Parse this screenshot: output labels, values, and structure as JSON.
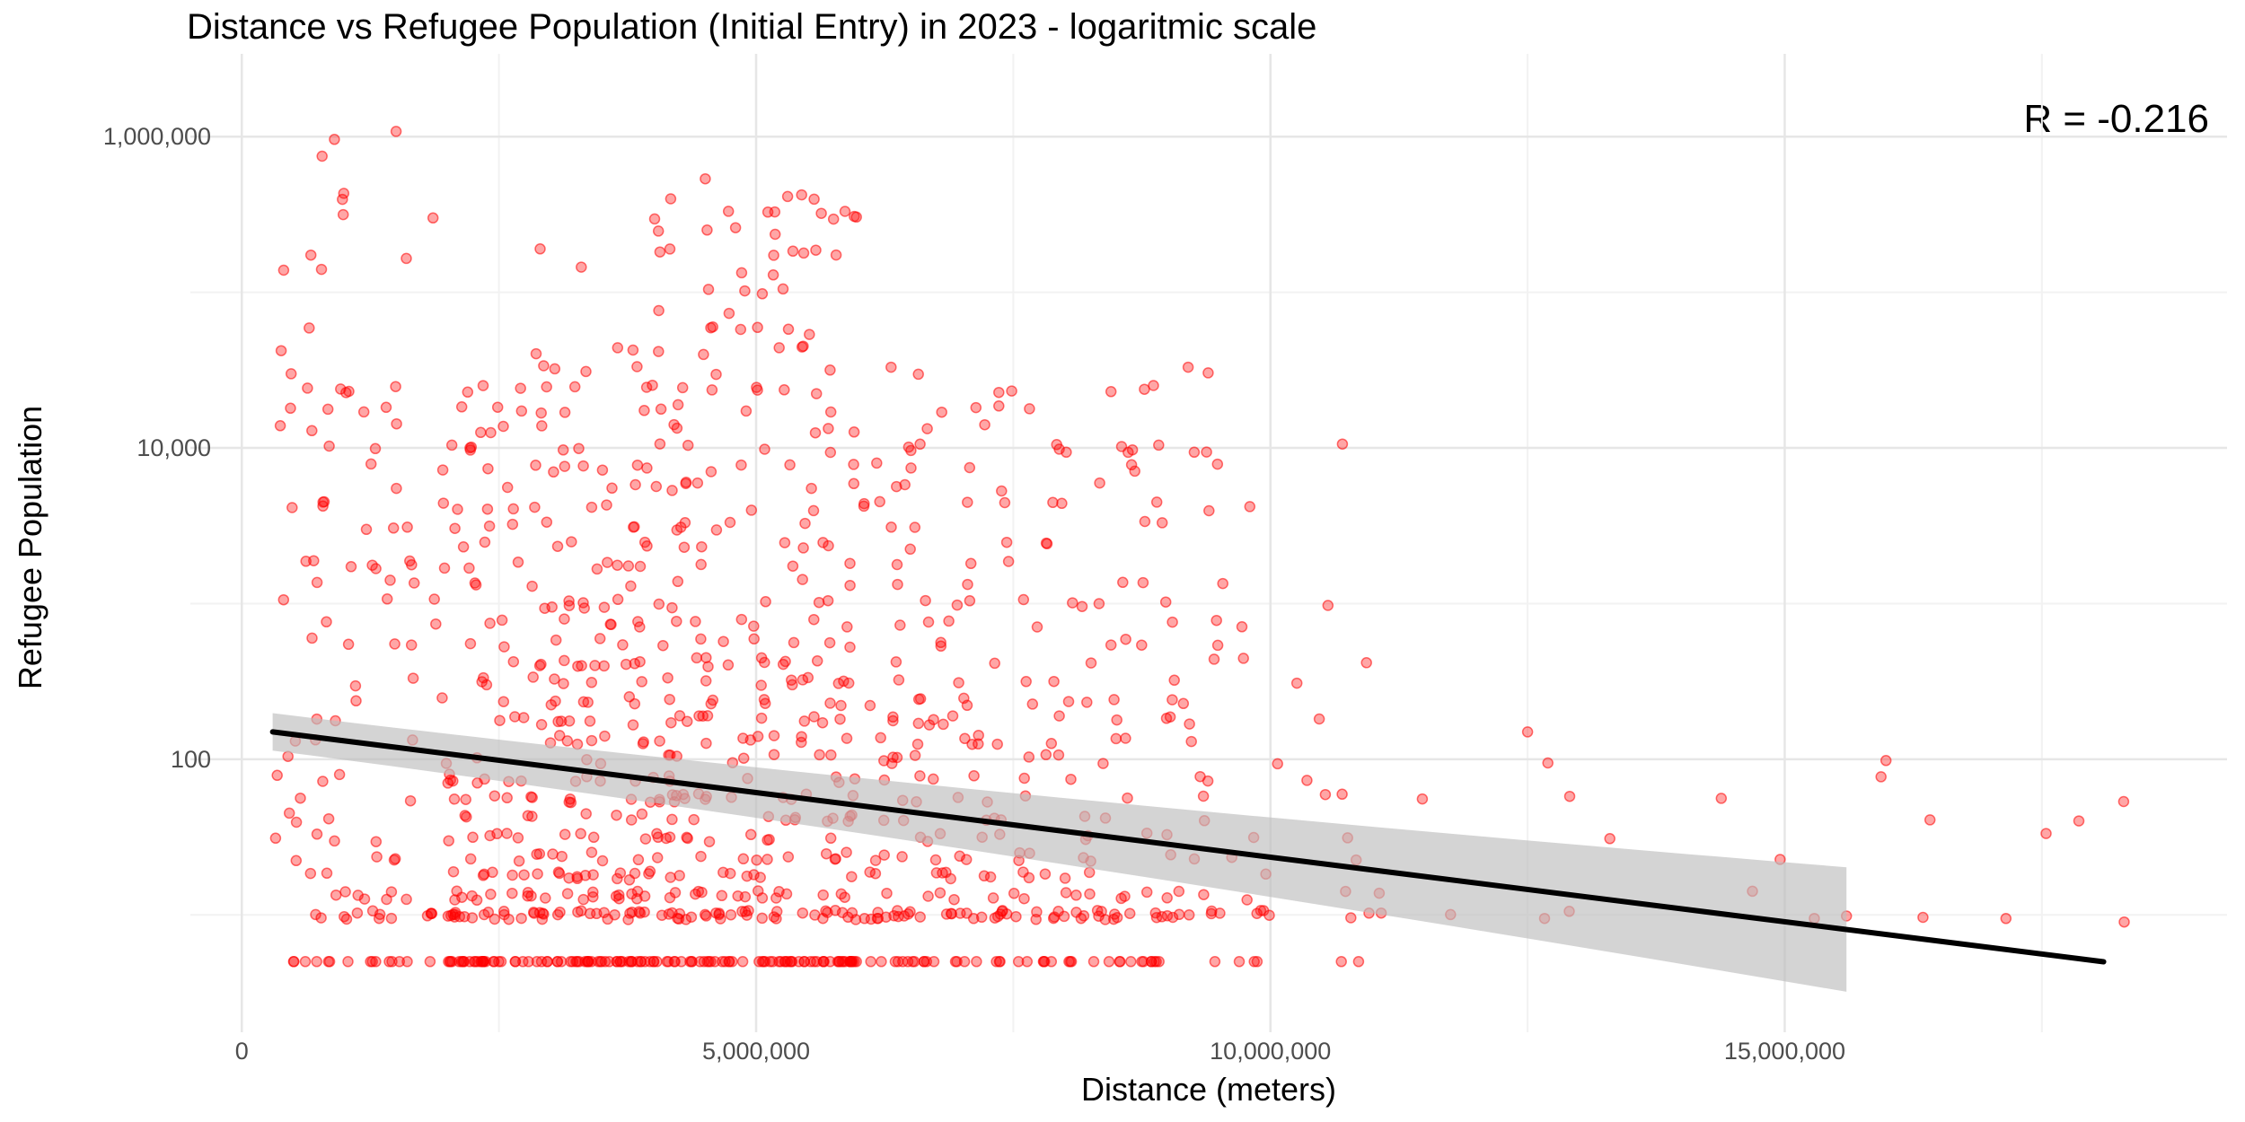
{
  "chart_data": {
    "type": "scatter",
    "title": "Distance vs Refugee Population (Initial Entry) in 2023 - logaritmic scale",
    "xlabel": "Distance (meters)",
    "ylabel": "Refugee Population",
    "annotation": "R =  -0.216",
    "x_scale": "linear",
    "y_scale": "log10",
    "xlim": [
      -500000,
      19300000
    ],
    "ylim": [
      2.3,
      2000000
    ],
    "x_ticks": [
      0,
      5000000,
      10000000,
      15000000
    ],
    "x_tick_labels": [
      "0",
      "5,000,000",
      "10,000,000",
      "15,000,000"
    ],
    "y_ticks": [
      100,
      10000,
      1000000
    ],
    "y_tick_labels": [
      "100",
      "10,000",
      "1,000,000"
    ],
    "grid": true,
    "point_color": "#ff0000",
    "trend_color": "#000000",
    "band_color": "#bdbdbd",
    "trend": {
      "x_start": 300000,
      "x_end": 18100000,
      "y_start": 150,
      "y_end": 5,
      "band_end_x": 15600000,
      "band_start_half_log": 0.12,
      "band_end_half_log": 0.4
    },
    "points": {
      "description": "approximately 1,100 red semi-transparent points estimated from the figure",
      "clusters": [
        {
          "x_range": [
            300000,
            2000000
          ],
          "log10y_range": [
            0.7,
            5.9
          ],
          "count": 120
        },
        {
          "x_range": [
            2000000,
            4000000
          ],
          "log10y_range": [
            0.7,
            4.6
          ],
          "count": 330
        },
        {
          "x_range": [
            4000000,
            6000000
          ],
          "log10y_range": [
            0.7,
            5.7
          ],
          "count": 340
        },
        {
          "x_range": [
            6000000,
            8000000
          ],
          "log10y_range": [
            0.7,
            4.5
          ],
          "count": 190
        },
        {
          "x_range": [
            8000000,
            9500000
          ],
          "log10y_range": [
            0.7,
            4.5
          ],
          "count": 110
        },
        {
          "x_range": [
            9500000,
            11000000
          ],
          "log10y_range": [
            0.7,
            3.2
          ],
          "count": 30
        },
        {
          "x_range": [
            11000000,
            18300000
          ],
          "log10y_range": [
            0.7,
            2.1
          ],
          "count": 22
        }
      ],
      "notable": [
        {
          "x": 900000,
          "y": 960000
        },
        {
          "x": 1500000,
          "y": 1080000
        },
        {
          "x": 4800000,
          "y": 260000
        },
        {
          "x": 2900000,
          "y": 190000
        },
        {
          "x": 1600000,
          "y": 165000
        },
        {
          "x": 3300000,
          "y": 145000
        },
        {
          "x": 9200000,
          "y": 33000
        },
        {
          "x": 10700000,
          "y": 10600.0
        },
        {
          "x": 9800000,
          "y": 4200
        },
        {
          "x": 12500000,
          "y": 150
        },
        {
          "x": 18300000,
          "y": 9
        }
      ]
    }
  }
}
